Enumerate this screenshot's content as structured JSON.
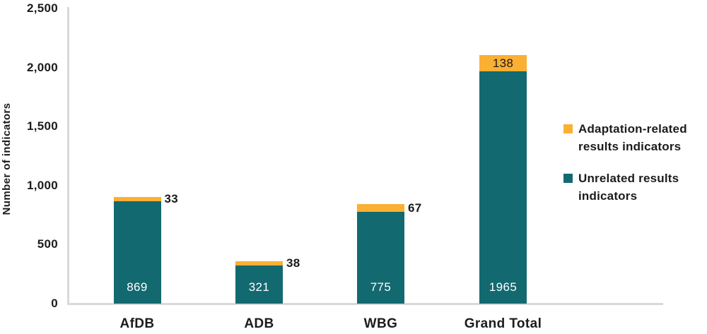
{
  "chart_data": {
    "type": "bar",
    "stacked": true,
    "title": "",
    "xlabel": "",
    "ylabel": "Number of indicators",
    "categories": [
      "AfDB",
      "ADB",
      "WBG",
      "Grand Total"
    ],
    "series": [
      {
        "name": "Unrelated results indicators",
        "color": "#136970",
        "values": [
          869,
          321,
          775,
          1965
        ]
      },
      {
        "name": "Adaptation-related results indicators",
        "color": "#FBAF33",
        "values": [
          33,
          38,
          67,
          138
        ]
      }
    ],
    "ylim": [
      0,
      2500
    ],
    "ytick_interval": 500,
    "yticks": [
      "0",
      "500",
      "1,000",
      "1,500",
      "2,000",
      "2,500"
    ],
    "grid": false,
    "legend_position": "right"
  },
  "legend": {
    "items": [
      {
        "label": "Adaptation-related results indicators",
        "color": "#FBAF33"
      },
      {
        "label": "Unrelated results indicators",
        "color": "#136970"
      }
    ]
  },
  "colors": {
    "teal": "#136970",
    "yellow": "#FBAF33",
    "axis": "#d9d9d9",
    "text": "#1c1c1c",
    "bar_value_text": "#ffffff"
  }
}
